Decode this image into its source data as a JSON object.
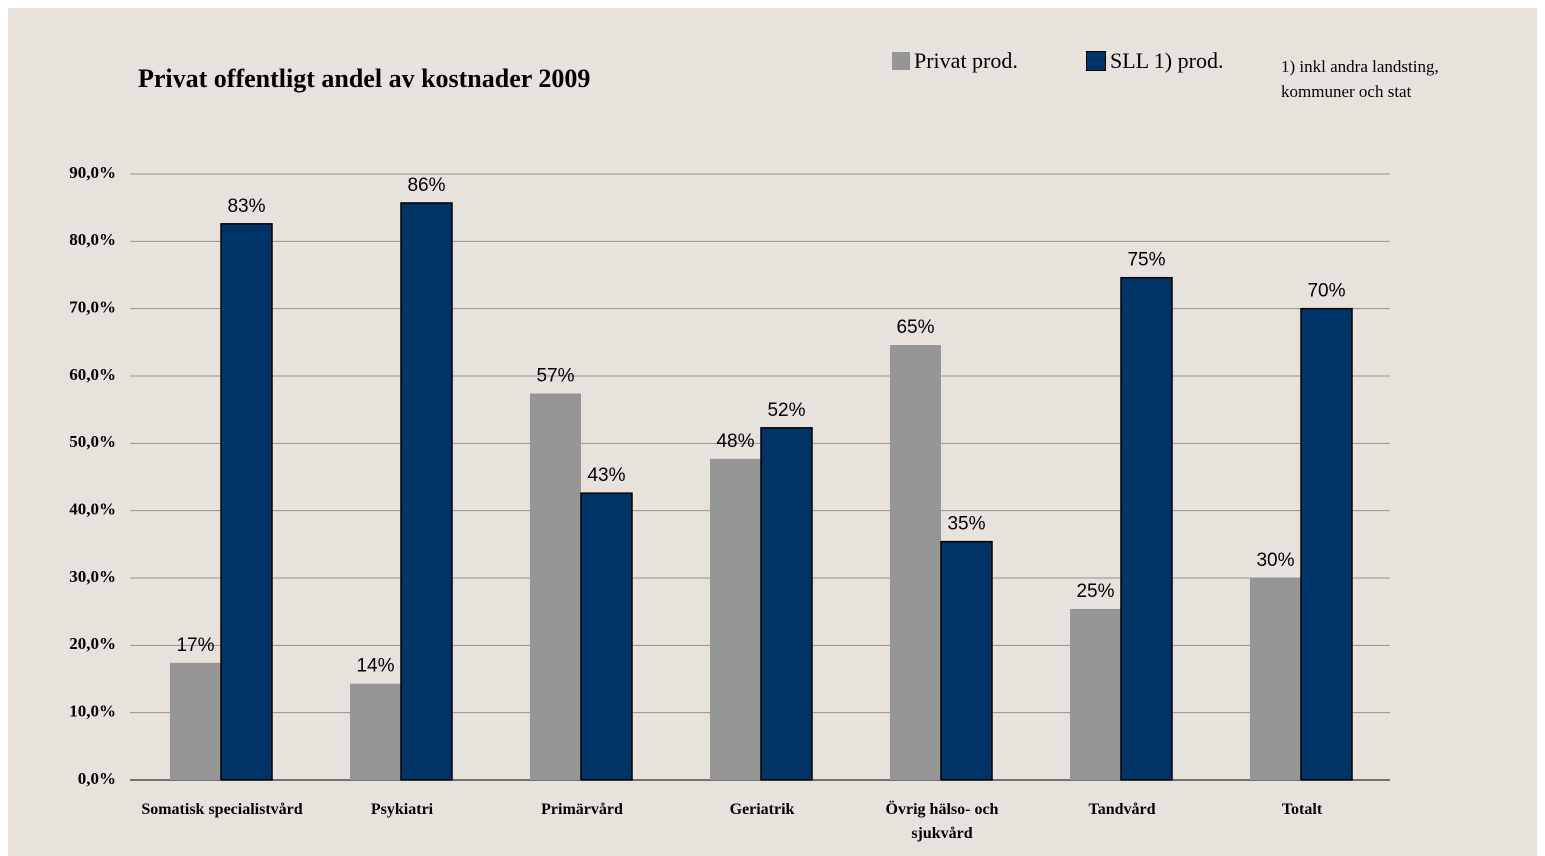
{
  "chart_data": {
    "type": "bar",
    "title": "Privat offentligt andel av kostnader 2009",
    "note": "1) inkl andra landsting, kommuner och stat",
    "categories": [
      "Somatisk specialistvård",
      "Psykiatri",
      "Primärvård",
      "Geriatrik",
      "Övrig hälso- och sjukvård",
      "Tandvård",
      "Totalt"
    ],
    "series": [
      {
        "name": "Privat prod.",
        "color": "#969696",
        "values": [
          17.4,
          14.3,
          57.4,
          47.7,
          64.6,
          25.4,
          30.0
        ],
        "value_labels": [
          "17%",
          "14%",
          "57%",
          "48%",
          "65%",
          "25%",
          "30%"
        ]
      },
      {
        "name": "SLL 1) prod.",
        "color": "#003366",
        "values": [
          82.6,
          85.7,
          42.6,
          52.3,
          35.4,
          74.6,
          70.0
        ],
        "value_labels": [
          "83%",
          "86%",
          "43%",
          "52%",
          "35%",
          "75%",
          "70%"
        ]
      }
    ],
    "ylim": [
      0,
      90
    ],
    "yticks": [
      {
        "value": 0,
        "label": "0,0%"
      },
      {
        "value": 10,
        "label": "10,0%"
      },
      {
        "value": 20,
        "label": "20,0%"
      },
      {
        "value": 30,
        "label": "30,0%"
      },
      {
        "value": 40,
        "label": "40,0%"
      },
      {
        "value": 50,
        "label": "50,0%"
      },
      {
        "value": 60,
        "label": "60,0%"
      },
      {
        "value": 70,
        "label": "70,0%"
      },
      {
        "value": 80,
        "label": "80,0%"
      },
      {
        "value": 90,
        "label": "90,0%"
      }
    ],
    "grid": true
  }
}
